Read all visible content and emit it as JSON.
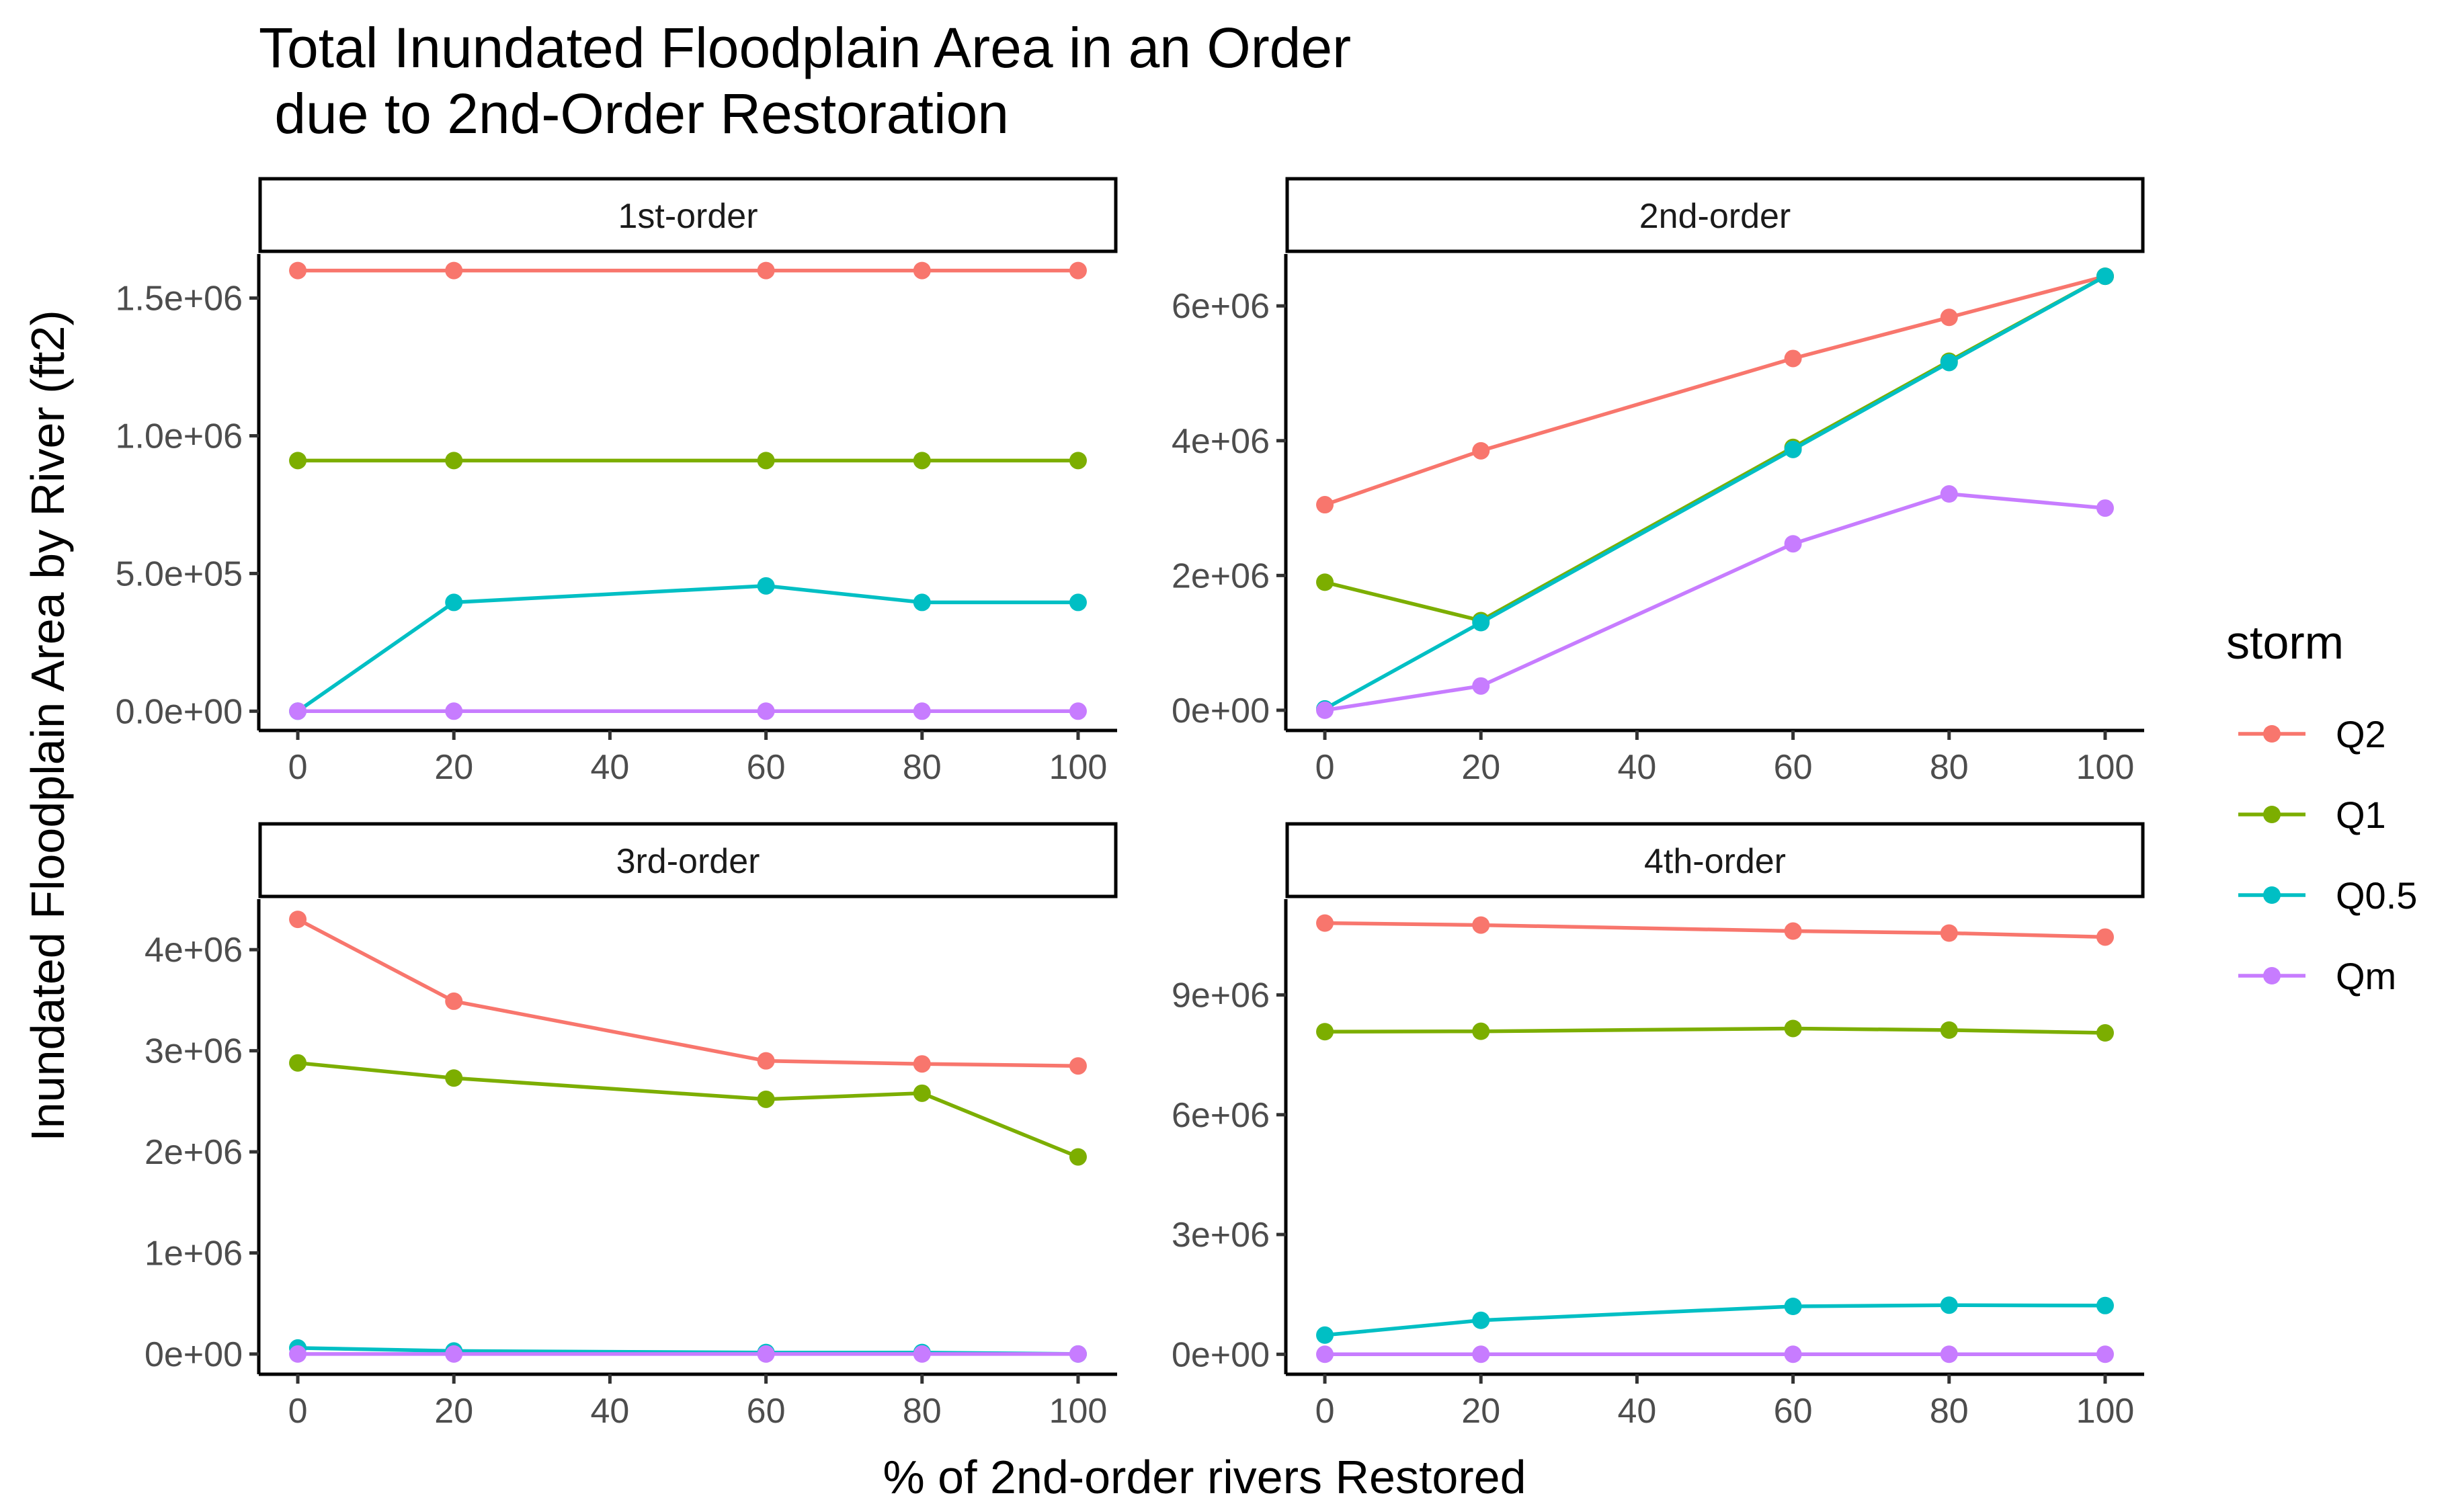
{
  "chart_data": {
    "type": "line",
    "title_line1": "Total Inundated Floodplain Area in an Order",
    "title_line2": " due to 2nd-Order Restoration",
    "xlabel": "% of 2nd-order rivers Restored",
    "ylabel": "Inundated Floodplain Area by River (ft2)",
    "legend": {
      "title": "storm",
      "position": "right",
      "entries": [
        {
          "name": "Q2",
          "color": "#F8766D"
        },
        {
          "name": "Q1",
          "color": "#7CAE00"
        },
        {
          "name": "Q0.5",
          "color": "#00BFC4"
        },
        {
          "name": "Qm",
          "color": "#C77CFF"
        }
      ]
    },
    "x_ticks": [
      0,
      20,
      40,
      60,
      80,
      100
    ],
    "xlim": [
      -5,
      105
    ],
    "x": [
      0,
      20,
      60,
      80,
      100
    ],
    "panels": [
      {
        "strip": "1st-order",
        "ylim": [
          -70000,
          1660000
        ],
        "y_ticks": [
          0,
          500000,
          1000000,
          1500000
        ],
        "y_tick_labels": [
          "0.0e+00",
          "5.0e+05",
          "1.0e+06",
          "1.5e+06"
        ],
        "series": [
          {
            "name": "Q2",
            "values": [
              1600000,
              1600000,
              1600000,
              1600000,
              1600000
            ]
          },
          {
            "name": "Q1",
            "values": [
              910000,
              910000,
              910000,
              910000,
              910000
            ]
          },
          {
            "name": "Q0.5",
            "values": [
              0,
              395000,
              455000,
              395000,
              395000
            ]
          },
          {
            "name": "Qm",
            "values": [
              0,
              0,
              0,
              0,
              0
            ]
          }
        ]
      },
      {
        "strip": "2nd-order",
        "ylim": [
          -300000,
          6770000
        ],
        "y_ticks": [
          0,
          2000000,
          4000000,
          6000000
        ],
        "y_tick_labels": [
          "0e+00",
          "2e+06",
          "4e+06",
          "6e+06"
        ],
        "series": [
          {
            "name": "Q2",
            "values": [
              3050000,
              3850000,
              5220000,
              5830000,
              6440000
            ]
          },
          {
            "name": "Q1",
            "values": [
              1900000,
              1330000,
              3900000,
              5180000,
              6440000
            ]
          },
          {
            "name": "Q0.5",
            "values": [
              20000,
              1300000,
              3870000,
              5160000,
              6440000
            ]
          },
          {
            "name": "Qm",
            "values": [
              0,
              360000,
              2470000,
              3210000,
              3000000
            ]
          }
        ]
      },
      {
        "strip": "3rd-order",
        "ylim": [
          -200000,
          4500000
        ],
        "y_ticks": [
          0,
          1000000,
          2000000,
          3000000,
          4000000
        ],
        "y_tick_labels": [
          "0e+00",
          "1e+06",
          "2e+06",
          "3e+06",
          "4e+06"
        ],
        "series": [
          {
            "name": "Q2",
            "values": [
              4300000,
              3490000,
              2900000,
              2870000,
              2850000
            ]
          },
          {
            "name": "Q1",
            "values": [
              2880000,
              2730000,
              2520000,
              2580000,
              1950000
            ]
          },
          {
            "name": "Q0.5",
            "values": [
              60000,
              30000,
              15000,
              15000,
              0
            ]
          },
          {
            "name": "Qm",
            "values": [
              0,
              0,
              0,
              0,
              0
            ]
          }
        ]
      },
      {
        "strip": "4th-order",
        "ylim": [
          -500000,
          11400000
        ],
        "y_ticks": [
          0,
          3000000,
          6000000,
          9000000
        ],
        "y_tick_labels": [
          "0e+00",
          "3e+06",
          "6e+06",
          "9e+06"
        ],
        "series": [
          {
            "name": "Q2",
            "values": [
              10800000,
              10750000,
              10600000,
              10550000,
              10450000
            ]
          },
          {
            "name": "Q1",
            "values": [
              8080000,
              8090000,
              8160000,
              8120000,
              8050000
            ]
          },
          {
            "name": "Q0.5",
            "values": [
              480000,
              850000,
              1200000,
              1230000,
              1220000
            ]
          },
          {
            "name": "Qm",
            "values": [
              0,
              0,
              0,
              0,
              0
            ]
          }
        ]
      }
    ]
  }
}
